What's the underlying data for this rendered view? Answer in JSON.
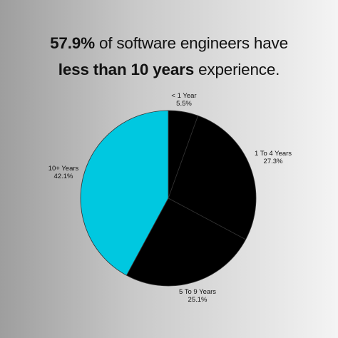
{
  "headline": {
    "line1_bold": "57.9%",
    "line1_rest": " of software engineers have",
    "line2_bold": "less than 10 years",
    "line2_rest": " experience."
  },
  "colors": {
    "accent": "#00c8e0",
    "dark": "#000000",
    "separator": "#333333"
  },
  "chart_data": {
    "type": "pie",
    "title": "57.9% of software engineers have less than 10 years experience.",
    "slices": [
      {
        "label": "< 1 Year",
        "value": 5.5,
        "display": "5.5%",
        "color": "#000000"
      },
      {
        "label": "1 To 4 Years",
        "value": 27.3,
        "display": "27.3%",
        "color": "#000000"
      },
      {
        "label": "5 To 9 Years",
        "value": 25.1,
        "display": "25.1%",
        "color": "#000000"
      },
      {
        "label": "10+ Years",
        "value": 42.1,
        "display": "42.1%",
        "color": "#00c8e0"
      }
    ],
    "start": "12 o'clock",
    "direction": "clockwise",
    "legend": "none (labels outside slices)"
  }
}
